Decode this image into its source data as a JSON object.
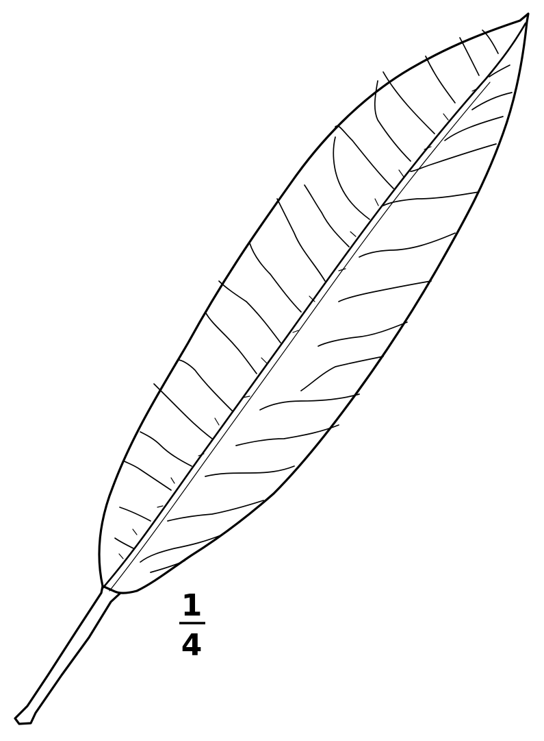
{
  "image": {
    "subject": "leaf",
    "scale_label": {
      "numerator": "1",
      "denominator": "4"
    },
    "colors": {
      "ink": "#000000",
      "paper": "#ffffff"
    }
  }
}
